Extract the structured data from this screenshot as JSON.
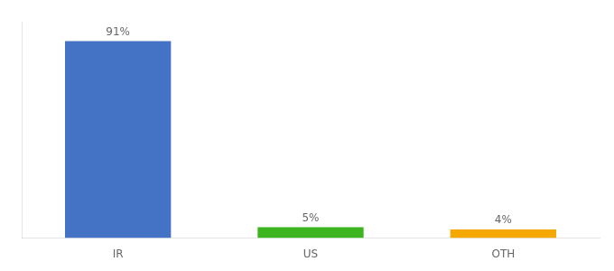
{
  "chart_data": {
    "type": "bar",
    "categories": [
      "IR",
      "US",
      "OTH"
    ],
    "values": [
      91,
      5,
      4
    ],
    "value_labels": [
      "91%",
      "5%",
      "4%"
    ],
    "data_labels": true,
    "colors": [
      "#4472c4",
      "#3cb520",
      "#f5a800"
    ],
    "ylim": [
      0,
      100
    ],
    "grid": false,
    "tick_labels": "x"
  }
}
